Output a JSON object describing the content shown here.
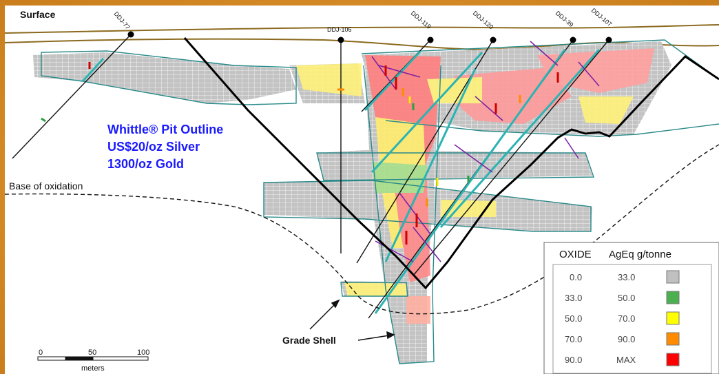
{
  "labels": {
    "surface": "Surface",
    "pit_line1": "Whittle® Pit Outline",
    "pit_line2": "US$20/oz Silver",
    "pit_line3": "1300/oz Gold",
    "base_oxidation": "Base of oxidation",
    "grade_shell": "Grade Shell"
  },
  "drill_holes": [
    "DDJ-77",
    "DDJ-106",
    "DDJ-119",
    "DDJ-120",
    "DDJ-39",
    "DDJ-107"
  ],
  "scale_bar": {
    "ticks": [
      "0",
      "50",
      "100"
    ],
    "unit": "meters"
  },
  "legend": {
    "col1": "OXIDE",
    "col2": "AgEq g/tonne",
    "rows": [
      {
        "from": "0.0",
        "to": "33.0",
        "color": "#c0c0c0"
      },
      {
        "from": "33.0",
        "to": "50.0",
        "color": "#4caf50"
      },
      {
        "from": "50.0",
        "to": "70.0",
        "color": "#ffff00"
      },
      {
        "from": "70.0",
        "to": "90.0",
        "color": "#ff8c00"
      },
      {
        "from": "90.0",
        "to": "MAX",
        "color": "#ff0000"
      }
    ]
  },
  "colors": {
    "surface": "#8b6a1e",
    "shell_outline": "#2a8a8a",
    "pit_outline": "#000000",
    "pit_text": "#1a1aff",
    "frame": "#d9902a"
  }
}
